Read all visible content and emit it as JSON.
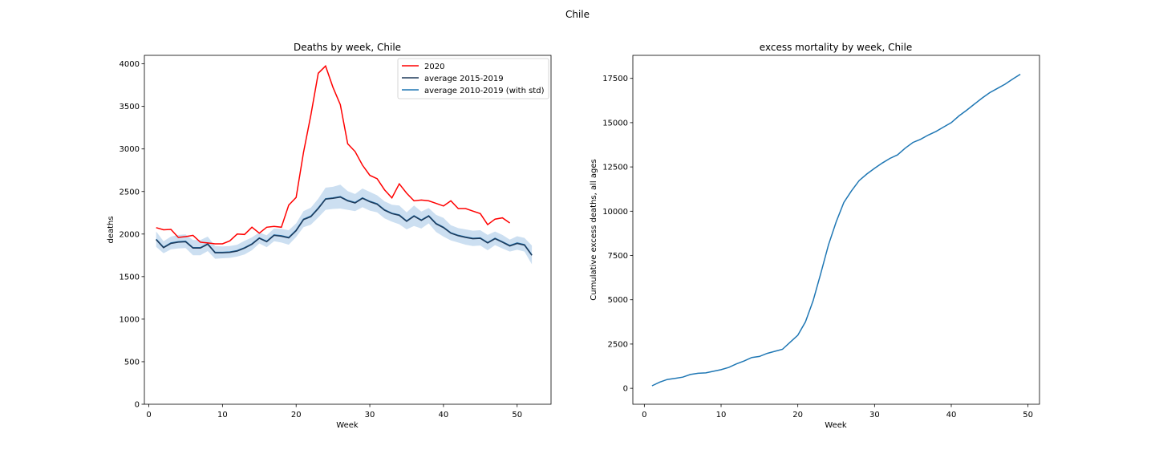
{
  "figure": {
    "title": "Chile"
  },
  "colors": {
    "red": "#ff0000",
    "dark": "#1f3a5a",
    "blue": "#1f77b4",
    "band": "#c6dbef"
  },
  "chart_data": [
    {
      "type": "line",
      "title": "Deaths by week, Chile",
      "xlabel": "Week",
      "ylabel": "deaths",
      "xlim": [
        -0.6,
        54.6
      ],
      "ylim": [
        0,
        4100
      ],
      "xticks": [
        0,
        10,
        20,
        30,
        40,
        50
      ],
      "yticks": [
        0,
        500,
        1000,
        1500,
        2000,
        2500,
        3000,
        3500,
        4000
      ],
      "legend": "top-right",
      "series": [
        {
          "name": "2020",
          "color": "#ff0000",
          "x": [
            1,
            2,
            3,
            4,
            5,
            6,
            7,
            8,
            9,
            10,
            11,
            12,
            13,
            14,
            15,
            16,
            17,
            18,
            19,
            20,
            21,
            22,
            23,
            24,
            25,
            26,
            27,
            28,
            29,
            30,
            31,
            32,
            33,
            34,
            35,
            36,
            37,
            38,
            39,
            40,
            41,
            42,
            43,
            44,
            45,
            46,
            47,
            48,
            49
          ],
          "y": [
            2075,
            2050,
            2055,
            1960,
            1970,
            1985,
            1905,
            1895,
            1885,
            1885,
            1920,
            2000,
            1995,
            2080,
            2010,
            2080,
            2090,
            2080,
            2340,
            2430,
            2960,
            3400,
            3890,
            3975,
            3725,
            3520,
            3060,
            2970,
            2810,
            2690,
            2650,
            2520,
            2425,
            2590,
            2480,
            2390,
            2400,
            2390,
            2360,
            2330,
            2390,
            2300,
            2300,
            2270,
            2240,
            2110,
            2175,
            2190,
            2130
          ]
        },
        {
          "name": "average 2015-2019",
          "color": "#1f3a5a",
          "x": [
            1,
            2,
            3,
            4,
            5,
            6,
            7,
            8,
            9,
            10,
            11,
            12,
            13,
            14,
            15,
            16,
            17,
            18,
            19,
            20,
            21,
            22,
            23,
            24,
            25,
            26,
            27,
            28,
            29,
            30,
            31,
            32,
            33,
            34,
            35,
            36,
            37,
            38,
            39,
            40,
            41,
            42,
            43,
            44,
            45,
            46,
            47,
            48,
            49,
            50,
            51,
            52
          ],
          "y": [
            1935,
            1840,
            1890,
            1905,
            1910,
            1835,
            1835,
            1880,
            1780,
            1780,
            1785,
            1800,
            1835,
            1880,
            1950,
            1910,
            1985,
            1975,
            1955,
            2040,
            2170,
            2205,
            2300,
            2410,
            2420,
            2435,
            2390,
            2365,
            2420,
            2380,
            2350,
            2280,
            2240,
            2220,
            2150,
            2210,
            2160,
            2210,
            2120,
            2075,
            2010,
            1980,
            1960,
            1945,
            1950,
            1895,
            1945,
            1905,
            1860,
            1890,
            1870,
            1750
          ]
        },
        {
          "name": "average 2010-2019 (with std)",
          "color": "#1f77b4",
          "x": [
            1,
            2,
            3,
            4,
            5,
            6,
            7,
            8,
            9,
            10,
            11,
            12,
            13,
            14,
            15,
            16,
            17,
            18,
            19,
            20,
            21,
            22,
            23,
            24,
            25,
            26,
            27,
            28,
            29,
            30,
            31,
            32,
            33,
            34,
            35,
            36,
            37,
            38,
            39,
            40,
            41,
            42,
            43,
            44,
            45,
            46,
            47,
            48,
            49,
            50,
            51,
            52
          ],
          "y": [
            1940,
            1845,
            1895,
            1910,
            1915,
            1840,
            1840,
            1885,
            1785,
            1785,
            1790,
            1805,
            1840,
            1885,
            1955,
            1915,
            1990,
            1980,
            1960,
            2045,
            2175,
            2210,
            2305,
            2415,
            2425,
            2440,
            2395,
            2370,
            2425,
            2385,
            2355,
            2285,
            2245,
            2225,
            2155,
            2215,
            2165,
            2215,
            2125,
            2080,
            2015,
            1985,
            1965,
            1950,
            1955,
            1900,
            1950,
            1910,
            1865,
            1895,
            1875,
            1755
          ],
          "std": [
            90,
            70,
            75,
            80,
            80,
            90,
            90,
            85,
            75,
            70,
            70,
            70,
            80,
            75,
            65,
            70,
            75,
            80,
            85,
            80,
            95,
            100,
            110,
            130,
            130,
            140,
            110,
            100,
            110,
            110,
            100,
            100,
            100,
            110,
            100,
            120,
            100,
            90,
            100,
            110,
            90,
            85,
            90,
            90,
            90,
            90,
            80,
            80,
            70,
            80,
            80,
            110
          ]
        }
      ]
    },
    {
      "type": "line",
      "title": "excess mortality by week, Chile",
      "xlabel": "Week",
      "ylabel": "Cumulative excess deaths, all ages",
      "xlim": [
        -1.5,
        51.5
      ],
      "ylim": [
        -900,
        18800
      ],
      "xticks": [
        0,
        10,
        20,
        30,
        40,
        50
      ],
      "yticks": [
        0,
        2500,
        5000,
        7500,
        10000,
        12500,
        15000,
        17500
      ],
      "series": [
        {
          "color": "#1f77b4",
          "x": [
            1,
            2,
            3,
            4,
            5,
            6,
            7,
            8,
            9,
            10,
            11,
            12,
            13,
            14,
            15,
            16,
            17,
            18,
            19,
            20,
            21,
            22,
            23,
            24,
            25,
            26,
            27,
            28,
            29,
            30,
            31,
            32,
            33,
            34,
            35,
            36,
            37,
            38,
            39,
            40,
            41,
            42,
            43,
            44,
            45,
            46,
            47,
            48,
            49
          ],
          "y": [
            140,
            350,
            500,
            560,
            630,
            780,
            850,
            870,
            960,
            1050,
            1180,
            1380,
            1540,
            1740,
            1800,
            1970,
            2090,
            2200,
            2600,
            3000,
            3750,
            4950,
            6500,
            8100,
            9400,
            10500,
            11150,
            11730,
            12100,
            12420,
            12720,
            12980,
            13180,
            13560,
            13880,
            14060,
            14300,
            14500,
            14750,
            15000,
            15380,
            15700,
            16040,
            16380,
            16690,
            16930,
            17170,
            17460,
            17730
          ]
        }
      ]
    }
  ]
}
